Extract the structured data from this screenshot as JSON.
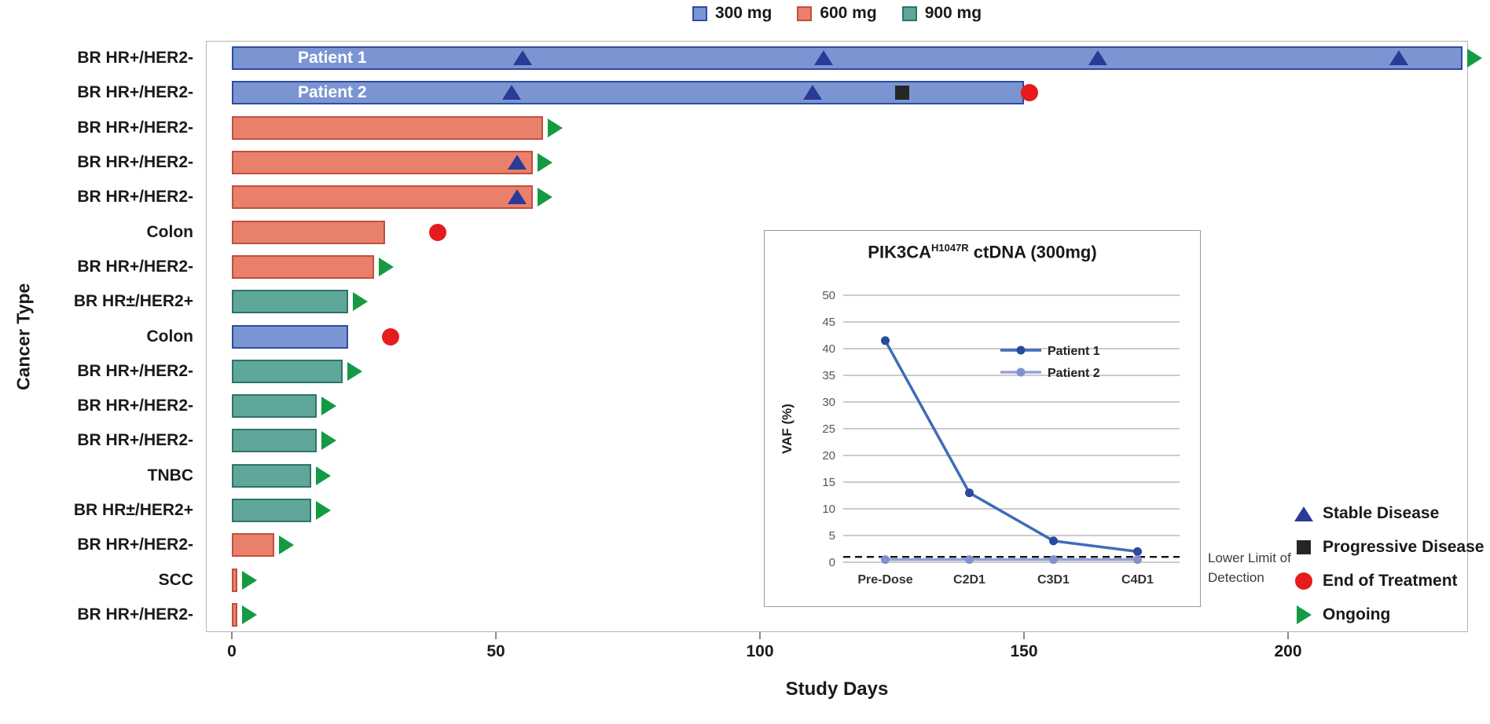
{
  "dose_legend": {
    "items": [
      {
        "key": "300",
        "label": "300 mg",
        "fill": "#7B95D3",
        "border": "#2E4CA0"
      },
      {
        "key": "600",
        "label": "600 mg",
        "fill": "#E8806C",
        "border": "#C0503E"
      },
      {
        "key": "900",
        "label": "900 mg",
        "fill": "#5EA79A",
        "border": "#2F7466"
      }
    ]
  },
  "marker_legend": {
    "items": [
      {
        "key": "stable",
        "label": "Stable Disease",
        "shape": "triangle-up",
        "color": "#2A3A96"
      },
      {
        "key": "progressive",
        "label": "Progressive Disease",
        "shape": "square",
        "color": "#262626"
      },
      {
        "key": "eot",
        "label": "End of Treatment",
        "shape": "circle",
        "color": "#E51B1E"
      },
      {
        "key": "ongoing",
        "label": "Ongoing",
        "shape": "triangle-right",
        "color": "#149A43"
      }
    ]
  },
  "axes": {
    "x_label": "Study Days",
    "y_label": "Cancer Type",
    "x_ticks": [
      0,
      50,
      100,
      150,
      200
    ],
    "x_max": 240
  },
  "chart_data": [
    {
      "type": "bar",
      "subtype": "swimmer",
      "xlabel": "Study Days",
      "ylabel": "Cancer Type",
      "xlim": [
        0,
        240
      ],
      "rows": [
        {
          "label": "BR HR+/HER2-",
          "dose": "300 mg",
          "bar_label": "Patient 1",
          "days": 233,
          "markers": [
            {
              "type": "stable",
              "day": 55
            },
            {
              "type": "stable",
              "day": 112
            },
            {
              "type": "stable",
              "day": 164
            },
            {
              "type": "stable",
              "day": 221
            }
          ],
          "end": "ongoing"
        },
        {
          "label": "BR HR+/HER2-",
          "dose": "300 mg",
          "bar_label": "Patient 2",
          "days": 150,
          "markers": [
            {
              "type": "stable",
              "day": 53
            },
            {
              "type": "stable",
              "day": 110
            },
            {
              "type": "progressive",
              "day": 127
            }
          ],
          "end": "eot",
          "end_day": 151
        },
        {
          "label": "BR HR+/HER2-",
          "dose": "600 mg",
          "days": 59,
          "markers": [],
          "end": "ongoing"
        },
        {
          "label": "BR HR+/HER2-",
          "dose": "600 mg",
          "days": 57,
          "markers": [
            {
              "type": "stable",
              "day": 54
            }
          ],
          "end": "ongoing"
        },
        {
          "label": "BR HR+/HER2-",
          "dose": "600 mg",
          "days": 57,
          "markers": [
            {
              "type": "stable",
              "day": 54
            }
          ],
          "end": "ongoing"
        },
        {
          "label": "Colon",
          "dose": "600 mg",
          "days": 29,
          "markers": [],
          "end": "eot",
          "end_day": 39
        },
        {
          "label": "BR HR+/HER2-",
          "dose": "600 mg",
          "days": 27,
          "markers": [],
          "end": "ongoing"
        },
        {
          "label": "BR HR±/HER2+",
          "dose": "900 mg",
          "days": 22,
          "markers": [],
          "end": "ongoing"
        },
        {
          "label": "Colon",
          "dose": "300 mg",
          "days": 22,
          "markers": [],
          "end": "eot",
          "end_day": 30
        },
        {
          "label": "BR HR+/HER2-",
          "dose": "900 mg",
          "days": 21,
          "markers": [],
          "end": "ongoing"
        },
        {
          "label": "BR HR+/HER2-",
          "dose": "900 mg",
          "days": 16,
          "markers": [],
          "end": "ongoing"
        },
        {
          "label": "BR HR+/HER2-",
          "dose": "900 mg",
          "days": 16,
          "markers": [],
          "end": "ongoing"
        },
        {
          "label": "TNBC",
          "dose": "900 mg",
          "days": 15,
          "markers": [],
          "end": "ongoing"
        },
        {
          "label": "BR HR±/HER2+",
          "dose": "900 mg",
          "days": 15,
          "markers": [],
          "end": "ongoing"
        },
        {
          "label": "BR HR+/HER2-",
          "dose": "600 mg",
          "days": 8,
          "markers": [],
          "end": "ongoing"
        },
        {
          "label": "SCC",
          "dose": "600 mg",
          "days": 1,
          "markers": [],
          "end": "ongoing"
        },
        {
          "label": "BR HR+/HER2-",
          "dose": "600 mg",
          "days": 1,
          "markers": [],
          "end": "ongoing"
        }
      ]
    },
    {
      "type": "line",
      "title": "PIK3CA H1047R ctDNA (300mg)",
      "title_parts": {
        "main": "PIK3CA",
        "sup": "H1047R",
        "rest": " ctDNA (300mg)"
      },
      "categories": [
        "Pre-Dose",
        "C2D1",
        "C3D1",
        "C4D1"
      ],
      "series": [
        {
          "name": "Patient 1",
          "values": [
            41.5,
            13,
            4,
            2
          ],
          "color": "#3E6CB8",
          "marker_color": "#2B4A9E"
        },
        {
          "name": "Patient 2",
          "values": [
            0.5,
            0.5,
            0.5,
            0.5
          ],
          "color": "#93A1DA",
          "marker_color": "#8290CE"
        }
      ],
      "ylabel": "VAF (%)",
      "ylim": [
        0,
        50
      ],
      "ytick_step": 5,
      "reference_line": {
        "value": 1,
        "label": "Lower Limit of Detection",
        "style": "dashed"
      },
      "legend_position": "upper-right",
      "grid": true
    }
  ]
}
